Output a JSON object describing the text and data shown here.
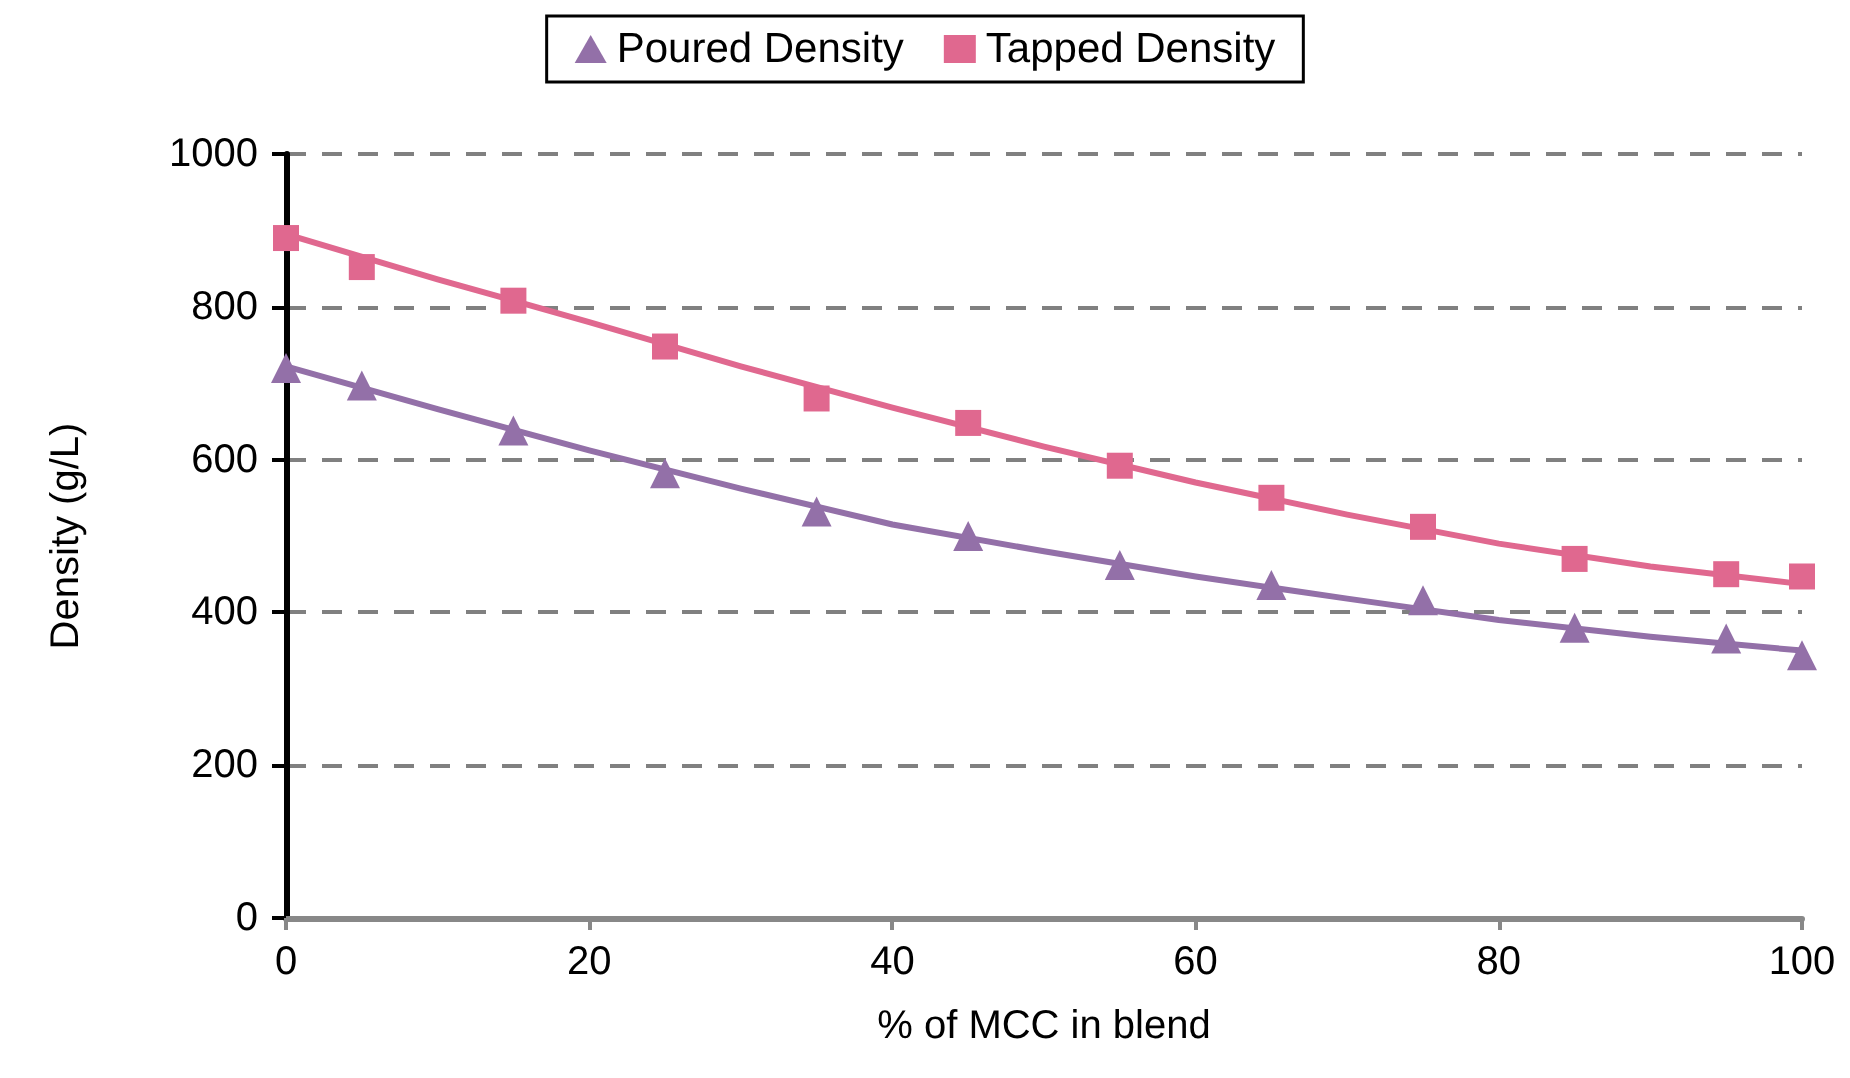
{
  "chart_data": {
    "type": "scatter",
    "xlabel": "% of MCC in blend",
    "ylabel": "Density (g/L)",
    "xlim": [
      0,
      100
    ],
    "xticks": [
      0,
      20,
      40,
      60,
      80,
      100
    ],
    "ylim": [
      0,
      1000
    ],
    "yticks": [
      0,
      200,
      400,
      600,
      800,
      1000
    ],
    "grid": "y",
    "legend": "top",
    "line_style": "solid",
    "series": [
      {
        "name": "Poured Density",
        "marker": "triangle",
        "color": "#9370a8",
        "x": [
          0,
          5,
          15,
          25,
          35,
          45,
          55,
          65,
          75,
          85,
          95,
          100
        ],
        "values": [
          720,
          697,
          638,
          582,
          532,
          500,
          462,
          436,
          416,
          380,
          366,
          344
        ]
      },
      {
        "name": "Tapped Density",
        "marker": "square",
        "color": "#e0688f",
        "x": [
          0,
          5,
          15,
          25,
          35,
          45,
          55,
          65,
          75,
          85,
          95,
          100
        ],
        "values": [
          890,
          852,
          808,
          748,
          680,
          648,
          592,
          550,
          512,
          470,
          450,
          447
        ]
      },
      {
        "type": "line",
        "marker": "none",
        "color": "#9370a8",
        "x": [
          0,
          10,
          20,
          30,
          40,
          50,
          60,
          70,
          80,
          90,
          100
        ],
        "values": [
          722,
          666,
          612,
          562,
          515,
          480,
          447,
          418,
          390,
          368,
          350
        ]
      },
      {
        "type": "line",
        "marker": "none",
        "color": "#e0688f",
        "x": [
          0,
          10,
          20,
          30,
          40,
          50,
          60,
          70,
          80,
          90,
          100
        ],
        "values": [
          895,
          836,
          780,
          722,
          668,
          617,
          570,
          528,
          490,
          460,
          437
        ]
      }
    ]
  }
}
